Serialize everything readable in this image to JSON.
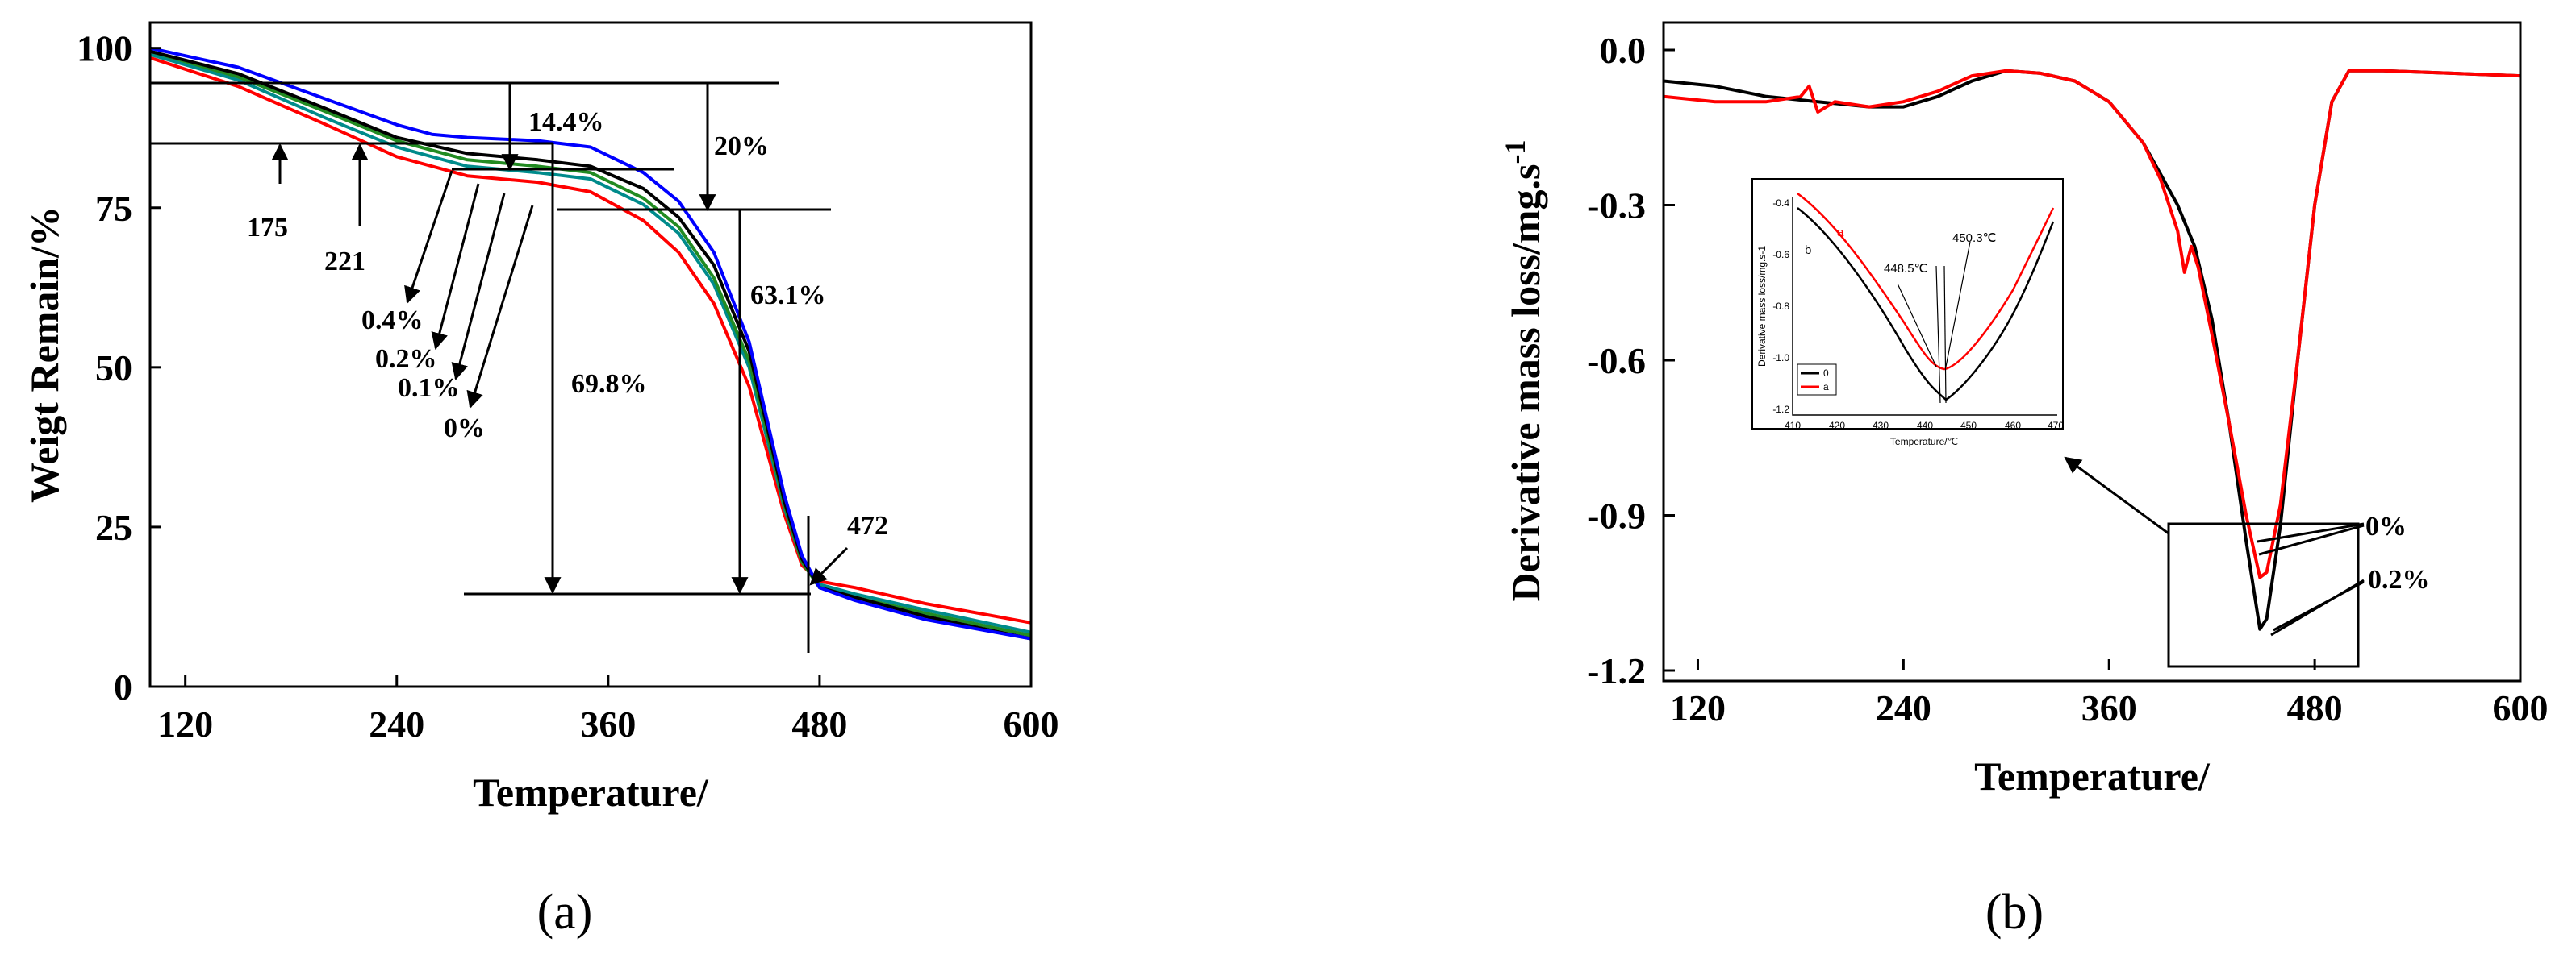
{
  "chart_data": [
    {
      "panel_label": "(a)",
      "type": "line",
      "xlabel": "Temperature/",
      "ylabel": "Weigt Remain/%",
      "xlim": [
        100,
        600
      ],
      "ylim": [
        0,
        104
      ],
      "xticks": [
        "120",
        "240",
        "360",
        "480",
        "600"
      ],
      "xtick_values": [
        120,
        240,
        360,
        480,
        600
      ],
      "yticks": [
        "0",
        "25",
        "50",
        "75",
        "100"
      ],
      "ytick_values": [
        0,
        25,
        50,
        75,
        100
      ],
      "legend": "none",
      "series": [
        {
          "color": "#ff0000",
          "x": [
            100,
            150,
            200,
            240,
            280,
            320,
            350,
            380,
            400,
            420,
            440,
            450,
            460,
            470,
            480,
            500,
            540,
            600
          ],
          "y": [
            98.5,
            94,
            88,
            83,
            80,
            79,
            77.5,
            73,
            68,
            60,
            47,
            37,
            27,
            19,
            16.5,
            15.5,
            13,
            10
          ]
        },
        {
          "color": "#008b8b",
          "x": [
            100,
            150,
            200,
            240,
            280,
            320,
            350,
            380,
            400,
            420,
            440,
            450,
            460,
            470,
            480,
            500,
            540,
            600
          ],
          "y": [
            99,
            95,
            89,
            84.5,
            81.5,
            80.5,
            79.5,
            75.5,
            71,
            63,
            50,
            39,
            28,
            19.5,
            16,
            14.5,
            12,
            8.5
          ]
        },
        {
          "color": "#228b22",
          "x": [
            100,
            150,
            200,
            240,
            280,
            320,
            350,
            380,
            400,
            420,
            440,
            450,
            460,
            470,
            480,
            500,
            540,
            600
          ],
          "y": [
            99.5,
            95.5,
            90,
            85.5,
            82.5,
            81.5,
            80.5,
            76.5,
            72,
            64,
            51,
            40,
            28.5,
            19.5,
            15.5,
            14,
            11.5,
            8
          ]
        },
        {
          "color": "#000000",
          "x": [
            100,
            150,
            200,
            240,
            280,
            320,
            350,
            380,
            400,
            420,
            440,
            450,
            460,
            470,
            480,
            500,
            540,
            600
          ],
          "y": [
            99.5,
            96,
            90.5,
            86,
            83.5,
            82.5,
            81.5,
            78,
            73.5,
            66,
            52.5,
            41,
            29,
            20,
            15.5,
            14,
            11,
            7.5
          ]
        },
        {
          "color": "#0000ff",
          "x": [
            100,
            150,
            200,
            240,
            260,
            280,
            320,
            350,
            380,
            400,
            420,
            440,
            450,
            460,
            470,
            480,
            500,
            540,
            600
          ],
          "y": [
            100,
            97,
            92,
            88,
            86.5,
            86,
            85.5,
            84.5,
            80.5,
            76,
            68,
            54,
            42,
            30,
            20.5,
            15.5,
            13.5,
            10.5,
            7.5
          ]
        }
      ],
      "annotations": [
        {
          "text": "14.4%"
        },
        {
          "text": "20%"
        },
        {
          "text": "175"
        },
        {
          "text": "221"
        },
        {
          "text": "0.4%"
        },
        {
          "text": "0.2%"
        },
        {
          "text": "0.1%"
        },
        {
          "text": "0%"
        },
        {
          "text": "69.8%"
        },
        {
          "text": "63.1%"
        },
        {
          "text": "472"
        }
      ]
    },
    {
      "panel_label": "(b)",
      "type": "line",
      "xlabel": "Temperature/",
      "ylabel": "Derivative mass loss/mg.s-1",
      "ylabel_main": "Derivative mass loss/mg.s",
      "ylabel_sup": "-1",
      "xlim": [
        100,
        600
      ],
      "ylim": [
        -1.2,
        0.0
      ],
      "xticks": [
        "120",
        "240",
        "360",
        "480",
        "600"
      ],
      "xtick_values": [
        120,
        240,
        360,
        480,
        600
      ],
      "yticks": [
        "0.0",
        "-0.3",
        "-0.6",
        "-0.9",
        "-1.2"
      ],
      "ytick_values": [
        0.0,
        -0.3,
        -0.6,
        -0.9,
        -1.2
      ],
      "legend": "none",
      "series": [
        {
          "color": "#000000",
          "x": [
            100,
            130,
            160,
            190,
            220,
            240,
            260,
            280,
            300,
            320,
            340,
            360,
            380,
            390,
            400,
            410,
            420,
            430,
            440,
            448,
            452,
            460,
            470,
            480,
            490,
            500,
            520,
            560,
            600
          ],
          "y": [
            -0.06,
            -0.07,
            -0.09,
            -0.1,
            -0.11,
            -0.11,
            -0.09,
            -0.06,
            -0.04,
            -0.045,
            -0.06,
            -0.1,
            -0.18,
            -0.24,
            -0.3,
            -0.38,
            -0.52,
            -0.72,
            -0.95,
            -1.12,
            -1.1,
            -0.92,
            -0.6,
            -0.3,
            -0.1,
            -0.04,
            -0.04,
            -0.045,
            -0.05
          ]
        },
        {
          "color": "#ff0000",
          "x": [
            100,
            130,
            160,
            180,
            185,
            190,
            200,
            220,
            240,
            260,
            280,
            300,
            320,
            340,
            360,
            380,
            390,
            400,
            404,
            408,
            412,
            420,
            430,
            440,
            448,
            452,
            460,
            470,
            480,
            490,
            500,
            520,
            560,
            600
          ],
          "y": [
            -0.09,
            -0.1,
            -0.1,
            -0.09,
            -0.07,
            -0.12,
            -0.1,
            -0.11,
            -0.1,
            -0.08,
            -0.05,
            -0.04,
            -0.045,
            -0.06,
            -0.1,
            -0.18,
            -0.25,
            -0.35,
            -0.43,
            -0.38,
            -0.42,
            -0.55,
            -0.72,
            -0.9,
            -1.02,
            -1.01,
            -0.88,
            -0.6,
            -0.3,
            -0.1,
            -0.04,
            -0.04,
            -0.045,
            -0.05
          ]
        }
      ],
      "annotations": [
        {
          "text": "0%"
        },
        {
          "text": "0.2%"
        }
      ]
    }
  ],
  "inset": {
    "ylabel": "Derivative mass loss/mg.s-1",
    "xlabel": "Temperature/℃",
    "xticks": [
      "410",
      "420",
      "430",
      "440",
      "450",
      "460",
      "470"
    ],
    "yticks": [
      "-0.4",
      "-0.6",
      "-0.8",
      "-1.0",
      "-1.2"
    ],
    "label_a": "a",
    "label_b": "b",
    "peak_red": "448.5℃",
    "peak_black": "450.3℃",
    "legend": [
      "0",
      "a"
    ]
  }
}
